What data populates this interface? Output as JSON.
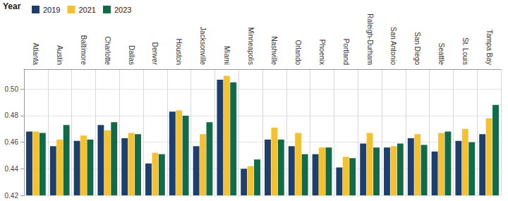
{
  "chart_data": {
    "type": "bar",
    "legend_title": "Year",
    "categories": [
      "Atlanta",
      "Austin",
      "Baltimore",
      "Charlotte",
      "Dallas",
      "Denver",
      "Houston",
      "Jacksonville",
      "Miami",
      "Minneapolis",
      "Nashville",
      "Orlando",
      "Phoenix",
      "Portland",
      "Raleigh-Durham",
      "San Antonio",
      "San Diego",
      "Seattle",
      "St. Louis",
      "Tampa Bay"
    ],
    "series": [
      {
        "name": "2019",
        "color": "#1c3f6e",
        "values": [
          0.468,
          0.457,
          0.461,
          0.473,
          0.463,
          0.444,
          0.483,
          0.457,
          0.507,
          0.44,
          0.462,
          0.457,
          0.451,
          0.441,
          0.459,
          0.456,
          0.463,
          0.453,
          0.461,
          0.466
        ]
      },
      {
        "name": "2021",
        "color": "#f5c12e",
        "values": [
          0.468,
          0.462,
          0.465,
          0.469,
          0.467,
          0.452,
          0.484,
          0.466,
          0.51,
          0.442,
          0.471,
          0.467,
          0.456,
          0.449,
          0.467,
          0.457,
          0.466,
          0.467,
          0.47,
          0.478
        ]
      },
      {
        "name": "2023",
        "color": "#116b48",
        "values": [
          0.467,
          0.473,
          0.462,
          0.475,
          0.466,
          0.451,
          0.48,
          0.475,
          0.505,
          0.447,
          0.462,
          0.451,
          0.456,
          0.448,
          0.456,
          0.459,
          0.458,
          0.468,
          0.46,
          0.488
        ]
      }
    ],
    "ylim": [
      0.42,
      0.515
    ],
    "yticks": [
      0.42,
      0.44,
      0.46,
      0.48,
      {
        "value": 0.5,
        "label": "0.50"
      }
    ],
    "grid": true,
    "legend": "top-left"
  }
}
